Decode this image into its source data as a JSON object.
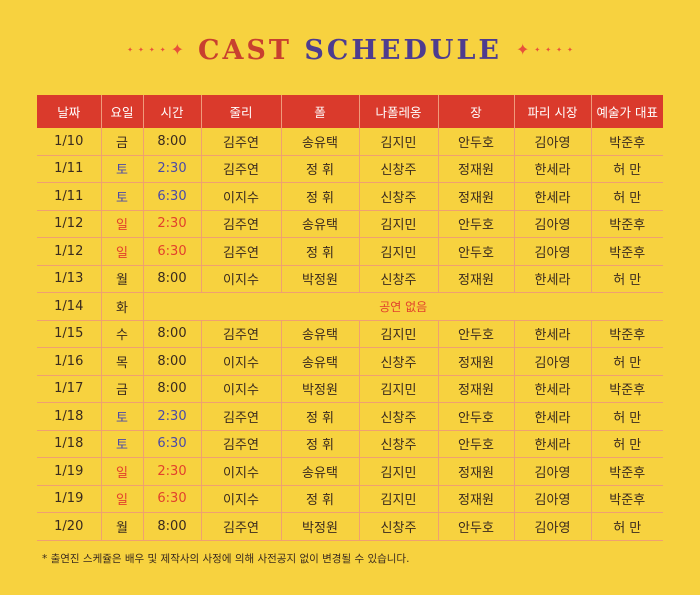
{
  "title": {
    "word1": "CAST",
    "word2": "SCHEDULE"
  },
  "columns": [
    "날짜",
    "요일",
    "시간",
    "줄리",
    "폴",
    "나폴레옹",
    "장",
    "파리 시장",
    "예술가 대표"
  ],
  "rows": [
    {
      "date": "1/10",
      "day": "금",
      "time": "8:00",
      "cast": [
        "김주연",
        "송유택",
        "김지민",
        "안두호",
        "김아영",
        "박준후"
      ],
      "type": "weekday"
    },
    {
      "date": "1/11",
      "day": "토",
      "time": "2:30",
      "cast": [
        "김주연",
        "정 휘",
        "신창주",
        "정재원",
        "한세라",
        "허 만"
      ],
      "type": "sat"
    },
    {
      "date": "1/11",
      "day": "토",
      "time": "6:30",
      "cast": [
        "이지수",
        "정 휘",
        "신창주",
        "정재원",
        "한세라",
        "허 만"
      ],
      "type": "sat"
    },
    {
      "date": "1/12",
      "day": "일",
      "time": "2:30",
      "cast": [
        "김주연",
        "송유택",
        "김지민",
        "안두호",
        "김아영",
        "박준후"
      ],
      "type": "sun"
    },
    {
      "date": "1/12",
      "day": "일",
      "time": "6:30",
      "cast": [
        "김주연",
        "정 휘",
        "김지민",
        "안두호",
        "김아영",
        "박준후"
      ],
      "type": "sun"
    },
    {
      "date": "1/13",
      "day": "월",
      "time": "8:00",
      "cast": [
        "이지수",
        "박정원",
        "신창주",
        "정재원",
        "한세라",
        "허 만"
      ],
      "type": "weekday"
    },
    {
      "date": "1/14",
      "day": "화",
      "time": "",
      "note": "공연 없음",
      "cast": [],
      "type": "weekday"
    },
    {
      "date": "1/15",
      "day": "수",
      "time": "8:00",
      "cast": [
        "김주연",
        "송유택",
        "김지민",
        "안두호",
        "한세라",
        "박준후"
      ],
      "type": "weekday"
    },
    {
      "date": "1/16",
      "day": "목",
      "time": "8:00",
      "cast": [
        "이지수",
        "송유택",
        "신창주",
        "정재원",
        "김아영",
        "허 만"
      ],
      "type": "weekday"
    },
    {
      "date": "1/17",
      "day": "금",
      "time": "8:00",
      "cast": [
        "이지수",
        "박정원",
        "김지민",
        "정재원",
        "한세라",
        "박준후"
      ],
      "type": "weekday"
    },
    {
      "date": "1/18",
      "day": "토",
      "time": "2:30",
      "cast": [
        "김주연",
        "정 휘",
        "신창주",
        "안두호",
        "한세라",
        "허 만"
      ],
      "type": "sat"
    },
    {
      "date": "1/18",
      "day": "토",
      "time": "6:30",
      "cast": [
        "김주연",
        "정 휘",
        "신창주",
        "안두호",
        "한세라",
        "허 만"
      ],
      "type": "sat"
    },
    {
      "date": "1/19",
      "day": "일",
      "time": "2:30",
      "cast": [
        "이지수",
        "송유택",
        "김지민",
        "정재원",
        "김아영",
        "박준후"
      ],
      "type": "sun"
    },
    {
      "date": "1/19",
      "day": "일",
      "time": "6:30",
      "cast": [
        "이지수",
        "정 휘",
        "김지민",
        "정재원",
        "김아영",
        "박준후"
      ],
      "type": "sun"
    },
    {
      "date": "1/20",
      "day": "월",
      "time": "8:00",
      "cast": [
        "김주연",
        "박정원",
        "신창주",
        "안두호",
        "김아영",
        "허 만"
      ],
      "type": "weekday"
    }
  ],
  "footnote": "* 출연진 스케쥴은 배우 및 제작사의 사정에 의해 사전공지 없이 변경될 수 있습니다.",
  "colors": {
    "header_bg": "#da3a2c",
    "sat": "#4b4aa8",
    "sun": "#e2412c",
    "title_red": "#c8402f",
    "title_purple": "#4e3c8f"
  }
}
